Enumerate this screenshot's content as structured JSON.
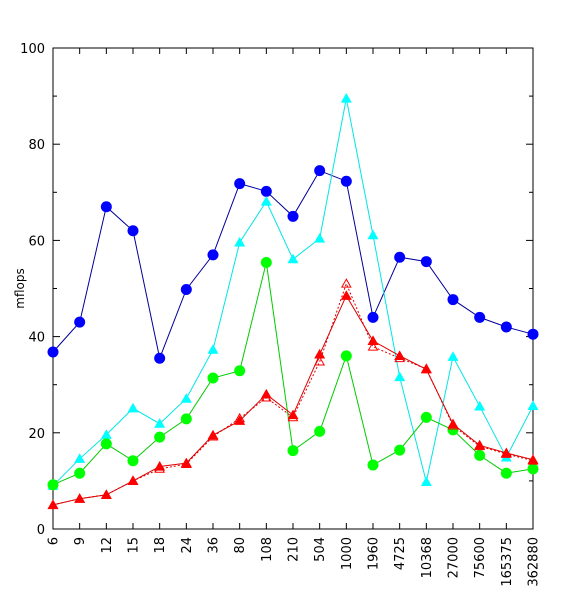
{
  "chart_data": {
    "type": "line",
    "title": "",
    "xlabel": "",
    "ylabel": "mflops",
    "ylim": [
      0,
      100
    ],
    "yticks": [
      0,
      20,
      40,
      60,
      80,
      100
    ],
    "grid": false,
    "categories": [
      "6",
      "9",
      "12",
      "15",
      "18",
      "24",
      "36",
      "80",
      "108",
      "210",
      "504",
      "1000",
      "1960",
      "4725",
      "10368",
      "27000",
      "75600",
      "165375",
      "362880"
    ],
    "series": [
      {
        "color": "#0000ff",
        "line_color": "#000099",
        "marker": "circle",
        "values": [
          36.8,
          43,
          67,
          62,
          35.5,
          49.8,
          57,
          71.8,
          70.2,
          65,
          74.5,
          72.3,
          44,
          56.5,
          55.6,
          47.7,
          44,
          42,
          40.5
        ]
      },
      {
        "color": "#00ffff",
        "line_color": "#00e5e5",
        "marker": "triangle",
        "values": [
          9,
          14.6,
          19.6,
          25.1,
          21.9,
          27.1,
          37.3,
          59.6,
          68.1,
          56.1,
          60.4,
          89.5,
          61.1,
          31.6,
          9.8,
          35.8,
          25.5,
          14.9,
          25.6
        ]
      },
      {
        "color": "#00ff00",
        "line_color": "#00cc00",
        "marker": "circle",
        "values": [
          9.2,
          11.6,
          17.7,
          14.2,
          19.1,
          22.9,
          31.4,
          32.9,
          55.4,
          16.3,
          20.3,
          36,
          13.3,
          16.4,
          23.2,
          20.6,
          15.3,
          11.6,
          12.5
        ]
      },
      {
        "color": "#ff0000",
        "line_color": "#dd0000",
        "marker": "triangle",
        "values": [
          5,
          6.3,
          7.1,
          10,
          13,
          13.7,
          19.5,
          22.5,
          28,
          23.7,
          36.3,
          48.5,
          39.1,
          36,
          33.2,
          21.8,
          17.4,
          15.8,
          14.4
        ]
      },
      {
        "color": "#ff0000",
        "line_color": "#dd0000",
        "marker": "triangle-open",
        "dashed": true,
        "values": [
          5,
          6.3,
          7.1,
          10,
          12.5,
          13.5,
          19.2,
          23,
          27.3,
          23.2,
          34.8,
          51,
          37.9,
          35.5,
          33.3,
          21.5,
          17.2,
          15.6,
          14.2
        ]
      }
    ]
  }
}
